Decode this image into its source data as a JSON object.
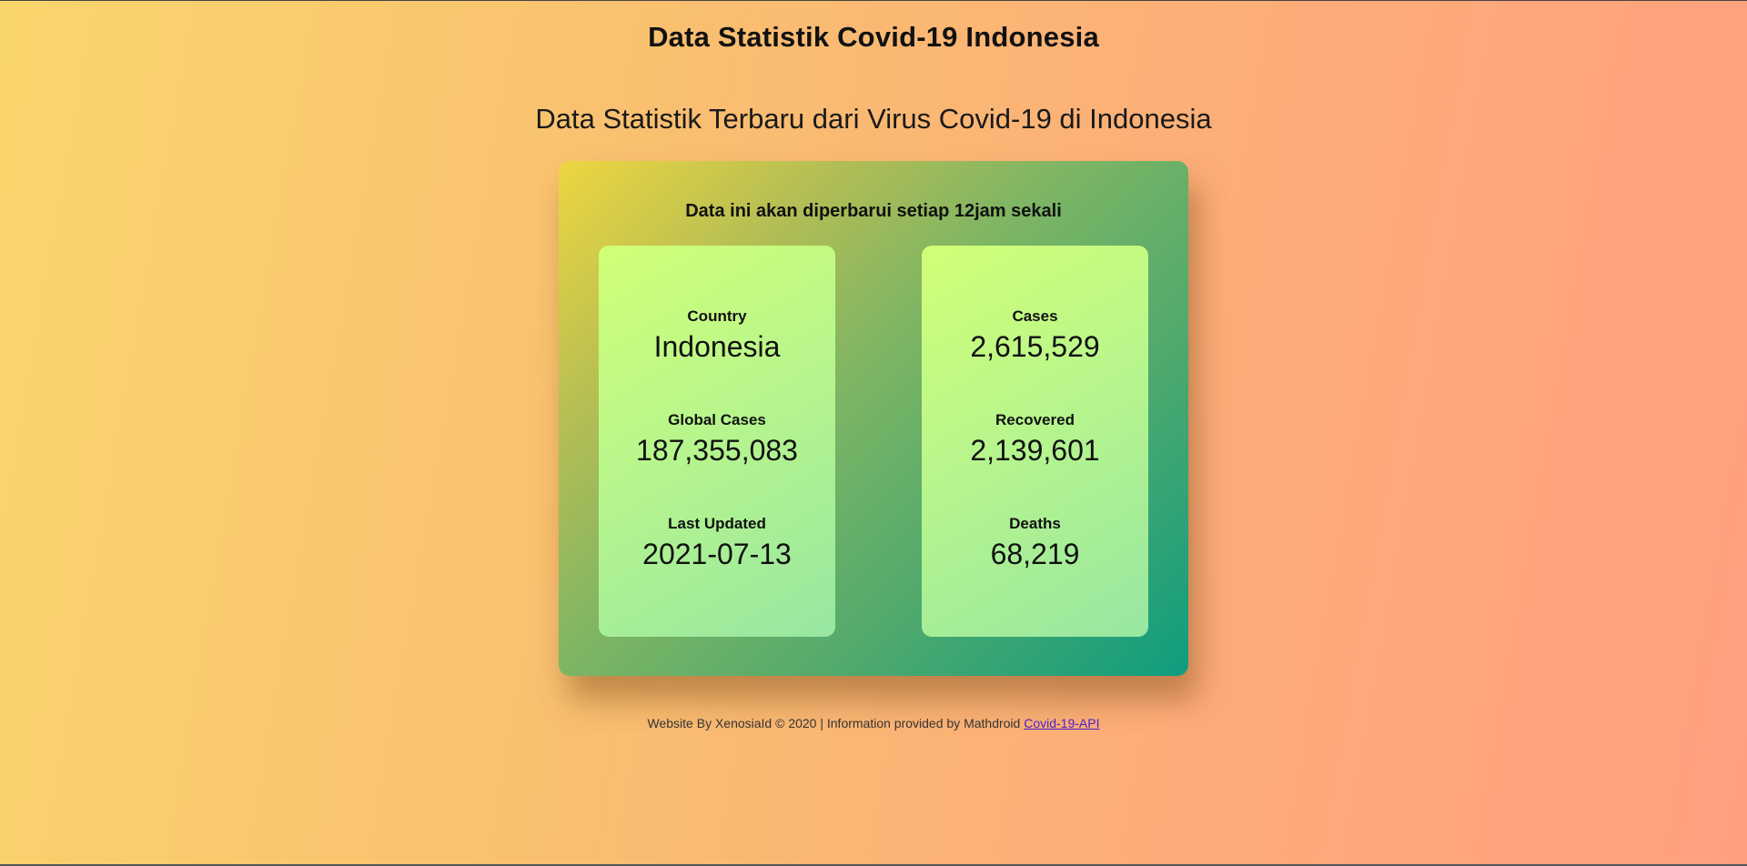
{
  "header": {
    "title": "Data Statistik Covid-19 Indonesia",
    "subtitle": "Data Statistik Terbaru dari Virus Covid-19 di Indonesia"
  },
  "panel": {
    "note": "Data ini akan diperbarui setiap 12jam sekali",
    "left_card": [
      {
        "label": "Country",
        "value": "Indonesia"
      },
      {
        "label": "Global Cases",
        "value": "187,355,083"
      },
      {
        "label": "Last Updated",
        "value": "2021-07-13"
      }
    ],
    "right_card": [
      {
        "label": "Cases",
        "value": "2,615,529"
      },
      {
        "label": "Recovered",
        "value": "2,139,601"
      },
      {
        "label": "Deaths",
        "value": "68,219"
      }
    ]
  },
  "footer": {
    "text": "Website By XenosiaId © 2020 | Information provided by Mathdroid ",
    "link_label": "Covid-19-API"
  },
  "colors": {
    "background_start": "#f9d66c",
    "background_end": "#ff9f80",
    "panel_start": "#eed640",
    "panel_end": "#0f9d7f",
    "card_start": "#d2ff76",
    "card_end": "#98e6a2",
    "link": "#4a1fc8"
  }
}
